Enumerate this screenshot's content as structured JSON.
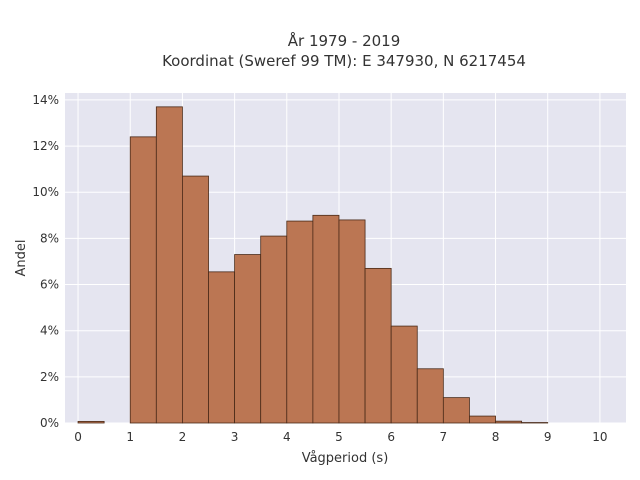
{
  "chart_data": {
    "type": "bar",
    "title": "År 1979 - 2019",
    "subtitle": "Koordinat (Sweref 99 TM): E 347930, N 6217454",
    "xlabel": "Vågperiod (s)",
    "ylabel": "Andel",
    "xlim": [
      -0.25,
      10.5
    ],
    "ylim": [
      0,
      14.3
    ],
    "x_ticks": [
      "0",
      "1",
      "2",
      "3",
      "4",
      "5",
      "6",
      "7",
      "8",
      "9",
      "10"
    ],
    "y_ticks": [
      "0%",
      "2%",
      "4%",
      "6%",
      "8%",
      "10%",
      "12%",
      "14%"
    ],
    "bin_width": 0.5,
    "bins": [
      {
        "x_start": 0.0,
        "value": 0.07
      },
      {
        "x_start": 1.0,
        "value": 12.4
      },
      {
        "x_start": 1.5,
        "value": 13.7
      },
      {
        "x_start": 2.0,
        "value": 10.7
      },
      {
        "x_start": 2.5,
        "value": 6.55
      },
      {
        "x_start": 3.0,
        "value": 7.3
      },
      {
        "x_start": 3.5,
        "value": 8.1
      },
      {
        "x_start": 4.0,
        "value": 8.75
      },
      {
        "x_start": 4.5,
        "value": 9.0
      },
      {
        "x_start": 5.0,
        "value": 8.8
      },
      {
        "x_start": 5.5,
        "value": 6.7
      },
      {
        "x_start": 6.0,
        "value": 4.2
      },
      {
        "x_start": 6.5,
        "value": 2.35
      },
      {
        "x_start": 7.0,
        "value": 1.1
      },
      {
        "x_start": 7.5,
        "value": 0.3
      },
      {
        "x_start": 8.0,
        "value": 0.08
      },
      {
        "x_start": 8.5,
        "value": 0.02
      }
    ],
    "grid": true,
    "colors": {
      "bar_fill": "#bb7653",
      "bar_stroke": "#4a2a18",
      "plot_bg": "#e5e5f0",
      "grid": "#ffffff"
    }
  }
}
